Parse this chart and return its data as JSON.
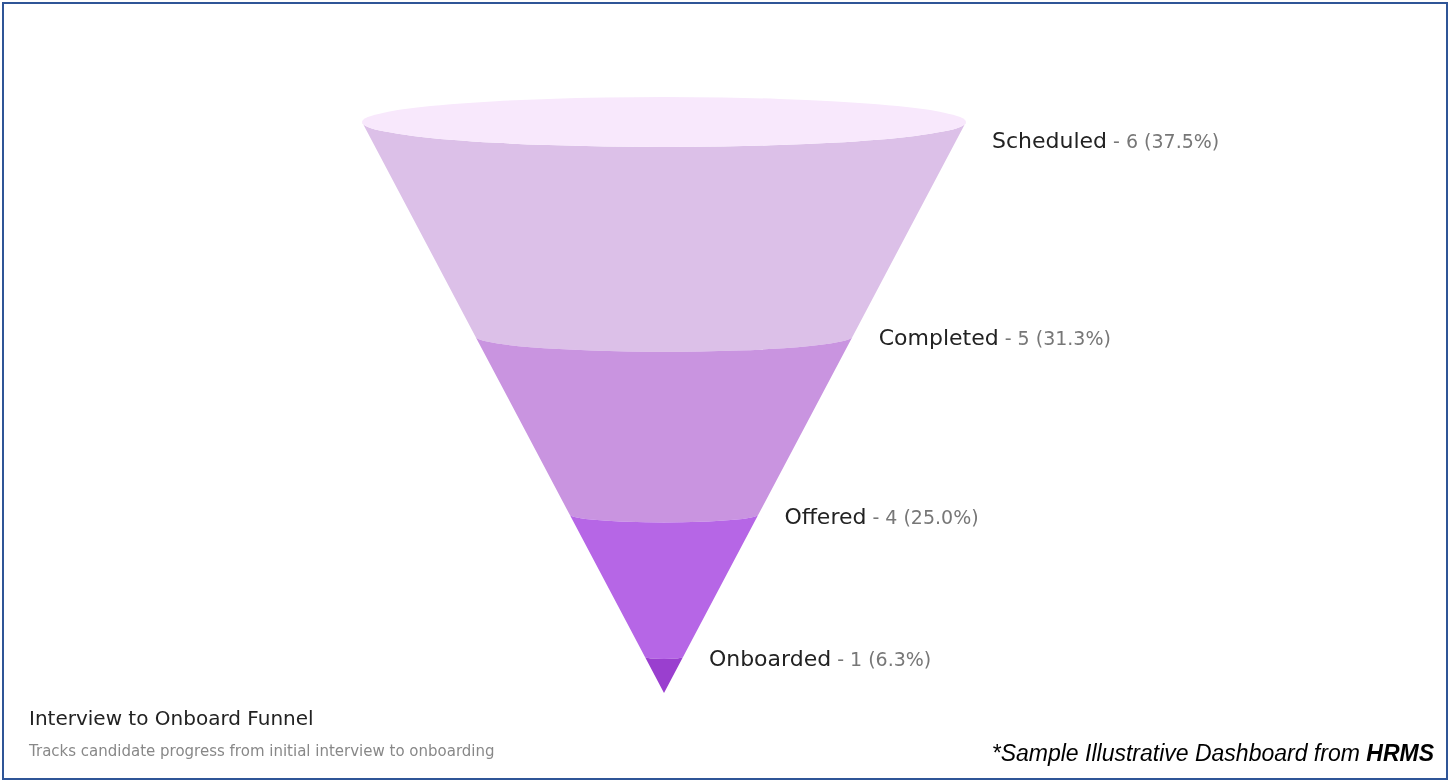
{
  "chart_data": {
    "type": "other",
    "title": "Interview to Onboard Funnel",
    "subtitle": "Tracks candidate progress from initial interview to onboarding",
    "categories": [
      "Scheduled -",
      "Completed -",
      "Offered -",
      "Onboarded -"
    ],
    "values": [
      6,
      5,
      4,
      1
    ],
    "value_labels": [
      "6 (37.5%)",
      "5 (31.3%)",
      "4 (25.0%)",
      "1 (6.3%)"
    ],
    "colors": [
      "#dcc0e8",
      "#c994e0",
      "#b666e6",
      "#9a3fcf"
    ],
    "annotations": [
      "*Sample Illustrative Dashboard from HRMS"
    ]
  }
}
